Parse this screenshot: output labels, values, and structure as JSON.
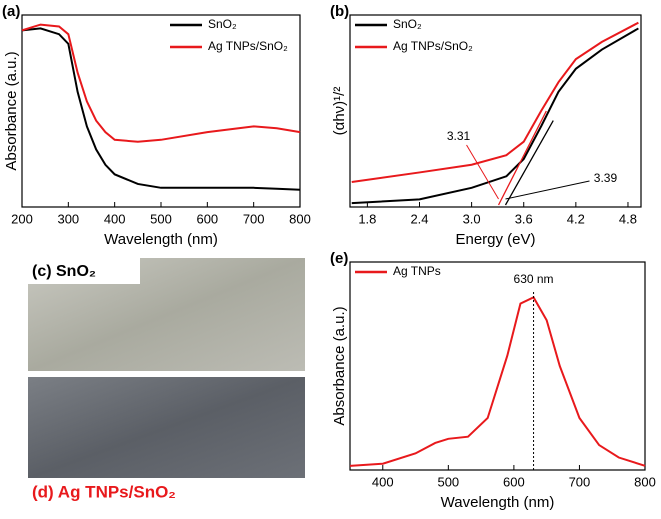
{
  "chart_data": [
    {
      "type": "line",
      "panel_label": "(a)",
      "xlabel": "Wavelength (nm)",
      "ylabel": "Absorbance (a.u.)",
      "x": [
        200,
        240,
        280,
        300,
        320,
        340,
        360,
        380,
        400,
        450,
        500,
        600,
        700,
        750,
        800
      ],
      "series": [
        {
          "name": "SnO₂",
          "color": "#000000",
          "values": [
            0.92,
            0.93,
            0.9,
            0.85,
            0.6,
            0.42,
            0.3,
            0.22,
            0.17,
            0.12,
            0.1,
            0.1,
            0.1,
            0.095,
            0.09
          ]
        },
        {
          "name": "Ag TNPs/SnO₂",
          "color": "#e8191c",
          "values": [
            0.92,
            0.95,
            0.94,
            0.9,
            0.7,
            0.55,
            0.45,
            0.39,
            0.35,
            0.34,
            0.35,
            0.39,
            0.42,
            0.41,
            0.39
          ]
        }
      ],
      "xlim": [
        200,
        800
      ],
      "ylim": [
        0,
        1
      ],
      "xticks": [
        200,
        300,
        400,
        500,
        600,
        700,
        800
      ],
      "legend": "upper right"
    },
    {
      "type": "line",
      "panel_label": "(b)",
      "xlabel": "Energy (eV)",
      "ylabel": "(αhν)¹/²",
      "x": [
        1.62,
        2.4,
        3.0,
        3.4,
        3.6,
        3.8,
        4.0,
        4.2,
        4.5,
        4.92
      ],
      "series": [
        {
          "name": "SnO₂",
          "color": "#000000",
          "values": [
            0.02,
            0.04,
            0.1,
            0.16,
            0.25,
            0.42,
            0.6,
            0.72,
            0.82,
            0.93
          ]
        },
        {
          "name": "Ag TNPs/SnO₂",
          "color": "#e8191c",
          "values": [
            0.13,
            0.18,
            0.22,
            0.27,
            0.34,
            0.5,
            0.65,
            0.77,
            0.86,
            0.96
          ]
        }
      ],
      "annotations": [
        3.31,
        3.39
      ],
      "xlim": [
        1.6,
        4.95
      ],
      "ylim": [
        0,
        1
      ],
      "xticks": [
        1.8,
        2.4,
        {
          "value": 3,
          "label": "3.0"
        },
        3.6,
        4.2,
        4.8
      ],
      "legend": "upper left"
    },
    {
      "type": "line",
      "panel_label": "(e)",
      "xlabel": "Wavelength (nm)",
      "ylabel": "Absorbance (a.u.)",
      "x": [
        350,
        400,
        450,
        480,
        500,
        530,
        560,
        590,
        610,
        630,
        650,
        670,
        700,
        730,
        760,
        800
      ],
      "series": [
        {
          "name": "Ag TNPs",
          "color": "#e8191c",
          "values": [
            0.02,
            0.03,
            0.08,
            0.13,
            0.15,
            0.16,
            0.25,
            0.55,
            0.8,
            0.83,
            0.72,
            0.5,
            0.25,
            0.12,
            0.06,
            0.02
          ]
        }
      ],
      "peak": {
        "value": 630,
        "label": "630 nm"
      },
      "xlim": [
        350,
        800
      ],
      "ylim": [
        0,
        1
      ],
      "xticks": [
        400,
        500,
        600,
        700,
        800
      ],
      "legend": "upper left"
    }
  ],
  "photos": [
    "(c) SnO₂",
    "(d) Ag TNPs/SnO₂"
  ]
}
